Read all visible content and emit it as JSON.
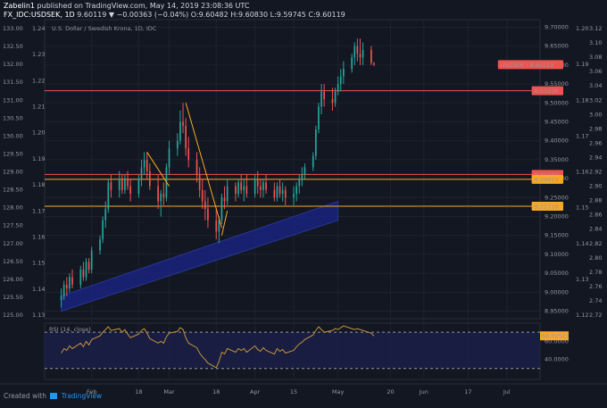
{
  "header": {
    "author": "Zabelin1",
    "published_text": "published on TradingView.com, May 14, 2019 23:08:36 UTC",
    "symbol": "FX_IDC:USDSEK, 1D",
    "ohlc": "9.60119 ▼ −0.00363 (−0.04%) O:9.60482 H:9.60830 L:9.59745 C:9.60119"
  },
  "footer": {
    "created_with": "Created with",
    "brand": "TradingView"
  },
  "chart_data": {
    "type": "candlestick",
    "title": "U.S. Dollar / Swedish Krona, 1D, IDC",
    "primary_axis": {
      "ticks": [
        "9.70000",
        "9.65000",
        "9.60000",
        "9.55000",
        "9.50000",
        "9.45000",
        "9.40000",
        "9.35000",
        "9.30000",
        "9.25000",
        "9.20000",
        "9.15000",
        "9.10000",
        "9.05000",
        "9.00000",
        "8.95000"
      ],
      "ylim": [
        8.93,
        9.72
      ]
    },
    "left_axis_1": {
      "ticks": [
        "133.00",
        "132.50",
        "132.00",
        "131.50",
        "131.00",
        "130.50",
        "130.00",
        "129.50",
        "129.00",
        "128.50",
        "128.00",
        "127.50",
        "127.00",
        "126.50",
        "126.00",
        "125.50",
        "125.00"
      ]
    },
    "left_axis_2": {
      "ticks": [
        "1.24",
        "1.23",
        "1.22",
        "1.21",
        "1.20",
        "1.19",
        "1.18",
        "1.17",
        "1.16",
        "1.15",
        "1.14",
        "1.13"
      ]
    },
    "right_axis_1": {
      "ticks": [
        "1.20",
        "1.19",
        "1.18",
        "1.17",
        "1.16",
        "1.15",
        "1.14",
        "1.13",
        "1.12"
      ]
    },
    "right_axis_2": {
      "ticks": [
        "3.12",
        "3.10",
        "3.08",
        "3.06",
        "3.04",
        "3.02",
        "3.00",
        "2.98",
        "2.96",
        "2.94",
        "2.92",
        "2.90",
        "2.88",
        "2.86",
        "2.84",
        "2.82",
        "2.80",
        "2.78",
        "2.76",
        "2.74",
        "2.72"
      ]
    },
    "x_ticks": [
      "Feb",
      "18",
      "Mar",
      "18",
      "Apr",
      "15",
      "May",
      "20",
      "Jun",
      "17",
      "Jul"
    ],
    "price_labels": [
      {
        "text": "USDSEK · 9.60119",
        "value": 9.60119,
        "color": "#ef5350"
      },
      {
        "text": "9.53236",
        "value": 9.53236,
        "color": "#ef5350"
      },
      {
        "text": "9.31102",
        "value": 9.31102,
        "color": "#ef5350"
      },
      {
        "text": "9.29810",
        "value": 9.2981,
        "color": "#f9a825"
      },
      {
        "text": "9.22718",
        "value": 9.22718,
        "color": "#f9a825"
      }
    ],
    "horizontal_lines": [
      {
        "value": 9.53236,
        "color": "#ef5350"
      },
      {
        "value": 9.31102,
        "color": "#ef5350"
      },
      {
        "value": 9.2981,
        "color": "#f9a825"
      },
      {
        "value": 9.22718,
        "color": "#f9a825"
      }
    ],
    "trend_lines": [
      {
        "from": [
          "Mar 7",
          9.5
        ],
        "to": [
          "Mar 20",
          9.17
        ],
        "color": "#f9a825"
      },
      {
        "from": [
          "Feb 21",
          9.37
        ],
        "to": [
          "Mar 1",
          9.28
        ],
        "color": "#f9a825"
      },
      {
        "from": [
          "Mar 20",
          9.15
        ],
        "to": [
          "Mar 22",
          9.215
        ],
        "color": "#f9a825"
      }
    ],
    "channel": {
      "lower": [
        [
          "Jan 21",
          8.95
        ],
        [
          "May 1",
          9.19
        ]
      ],
      "upper": [
        [
          "Jan 21",
          8.99
        ],
        [
          "May 1",
          9.24
        ]
      ],
      "color": "#1a237e"
    },
    "candles": [
      {
        "date": "Jan 21",
        "o": 8.98,
        "h": 9.01,
        "l": 8.96,
        "c": 8.99
      },
      {
        "date": "Jan 22",
        "o": 8.99,
        "h": 9.03,
        "l": 8.98,
        "c": 9.02
      },
      {
        "date": "Jan 23",
        "o": 9.02,
        "h": 9.04,
        "l": 8.99,
        "c": 9.01
      },
      {
        "date": "Jan 24",
        "o": 9.01,
        "h": 9.05,
        "l": 9.0,
        "c": 9.04
      },
      {
        "date": "Jan 25",
        "o": 9.04,
        "h": 9.06,
        "l": 9.01,
        "c": 9.02
      },
      {
        "date": "Jan 28",
        "o": 9.02,
        "h": 9.07,
        "l": 9.01,
        "c": 9.06
      },
      {
        "date": "Jan 29",
        "o": 9.06,
        "h": 9.08,
        "l": 9.03,
        "c": 9.04
      },
      {
        "date": "Jan 30",
        "o": 9.04,
        "h": 9.09,
        "l": 9.03,
        "c": 9.08
      },
      {
        "date": "Jan 31",
        "o": 9.08,
        "h": 9.09,
        "l": 9.05,
        "c": 9.06
      },
      {
        "date": "Feb 1",
        "o": 9.06,
        "h": 9.12,
        "l": 9.05,
        "c": 9.11
      },
      {
        "date": "Feb 4",
        "o": 9.11,
        "h": 9.15,
        "l": 9.1,
        "c": 9.14
      },
      {
        "date": "Feb 5",
        "o": 9.14,
        "h": 9.2,
        "l": 9.13,
        "c": 9.19
      },
      {
        "date": "Feb 6",
        "o": 9.19,
        "h": 9.24,
        "l": 9.17,
        "c": 9.22
      },
      {
        "date": "Feb 7",
        "o": 9.22,
        "h": 9.3,
        "l": 9.21,
        "c": 9.29
      },
      {
        "date": "Feb 8",
        "o": 9.29,
        "h": 9.31,
        "l": 9.25,
        "c": 9.27
      },
      {
        "date": "Feb 11",
        "o": 9.27,
        "h": 9.32,
        "l": 9.25,
        "c": 9.3
      },
      {
        "date": "Feb 12",
        "o": 9.3,
        "h": 9.31,
        "l": 9.26,
        "c": 9.27
      },
      {
        "date": "Feb 13",
        "o": 9.27,
        "h": 9.31,
        "l": 9.26,
        "c": 9.3
      },
      {
        "date": "Feb 14",
        "o": 9.3,
        "h": 9.32,
        "l": 9.27,
        "c": 9.28
      },
      {
        "date": "Feb 15",
        "o": 9.28,
        "h": 9.3,
        "l": 9.24,
        "c": 9.26
      },
      {
        "date": "Feb 18",
        "o": 9.26,
        "h": 9.31,
        "l": 9.25,
        "c": 9.3
      },
      {
        "date": "Feb 19",
        "o": 9.3,
        "h": 9.35,
        "l": 9.28,
        "c": 9.33
      },
      {
        "date": "Feb 20",
        "o": 9.33,
        "h": 9.37,
        "l": 9.31,
        "c": 9.35
      },
      {
        "date": "Feb 21",
        "o": 9.35,
        "h": 9.37,
        "l": 9.3,
        "c": 9.32
      },
      {
        "date": "Feb 22",
        "o": 9.32,
        "h": 9.34,
        "l": 9.27,
        "c": 9.28
      },
      {
        "date": "Feb 25",
        "o": 9.28,
        "h": 9.31,
        "l": 9.22,
        "c": 9.24
      },
      {
        "date": "Feb 26",
        "o": 9.24,
        "h": 9.27,
        "l": 9.2,
        "c": 9.26
      },
      {
        "date": "Feb 27",
        "o": 9.26,
        "h": 9.29,
        "l": 9.23,
        "c": 9.25
      },
      {
        "date": "Feb 28",
        "o": 9.25,
        "h": 9.34,
        "l": 9.24,
        "c": 9.33
      },
      {
        "date": "Mar 1",
        "o": 9.33,
        "h": 9.4,
        "l": 9.31,
        "c": 9.38
      },
      {
        "date": "Mar 4",
        "o": 9.38,
        "h": 9.42,
        "l": 9.36,
        "c": 9.4
      },
      {
        "date": "Mar 5",
        "o": 9.4,
        "h": 9.48,
        "l": 9.39,
        "c": 9.45
      },
      {
        "date": "Mar 6",
        "o": 9.45,
        "h": 9.5,
        "l": 9.42,
        "c": 9.44
      },
      {
        "date": "Mar 7",
        "o": 9.44,
        "h": 9.46,
        "l": 9.36,
        "c": 9.38
      },
      {
        "date": "Mar 8",
        "o": 9.38,
        "h": 9.41,
        "l": 9.33,
        "c": 9.35
      },
      {
        "date": "Mar 11",
        "o": 9.35,
        "h": 9.37,
        "l": 9.29,
        "c": 9.31
      },
      {
        "date": "Mar 12",
        "o": 9.31,
        "h": 9.33,
        "l": 9.25,
        "c": 9.27
      },
      {
        "date": "Mar 13",
        "o": 9.27,
        "h": 9.3,
        "l": 9.22,
        "c": 9.24
      },
      {
        "date": "Mar 14",
        "o": 9.24,
        "h": 9.27,
        "l": 9.19,
        "c": 9.22
      },
      {
        "date": "Mar 15",
        "o": 9.22,
        "h": 9.25,
        "l": 9.17,
        "c": 9.19
      },
      {
        "date": "Mar 18",
        "o": 9.19,
        "h": 9.22,
        "l": 9.14,
        "c": 9.16
      },
      {
        "date": "Mar 19",
        "o": 9.16,
        "h": 9.2,
        "l": 9.13,
        "c": 9.19
      },
      {
        "date": "Mar 20",
        "o": 9.19,
        "h": 9.26,
        "l": 9.18,
        "c": 9.25
      },
      {
        "date": "Mar 21",
        "o": 9.25,
        "h": 9.28,
        "l": 9.22,
        "c": 9.24
      },
      {
        "date": "Mar 22",
        "o": 9.24,
        "h": 9.3,
        "l": 9.23,
        "c": 9.28
      },
      {
        "date": "Mar 25",
        "o": 9.28,
        "h": 9.29,
        "l": 9.24,
        "c": 9.26
      },
      {
        "date": "Mar 26",
        "o": 9.26,
        "h": 9.3,
        "l": 9.25,
        "c": 9.29
      },
      {
        "date": "Mar 27",
        "o": 9.29,
        "h": 9.31,
        "l": 9.26,
        "c": 9.27
      },
      {
        "date": "Mar 28",
        "o": 9.27,
        "h": 9.3,
        "l": 9.24,
        "c": 9.28
      },
      {
        "date": "Mar 29",
        "o": 9.28,
        "h": 9.31,
        "l": 9.25,
        "c": 9.26
      },
      {
        "date": "Apr 1",
        "o": 9.26,
        "h": 9.31,
        "l": 9.25,
        "c": 9.3
      },
      {
        "date": "Apr 2",
        "o": 9.3,
        "h": 9.32,
        "l": 9.26,
        "c": 9.28
      },
      {
        "date": "Apr 3",
        "o": 9.28,
        "h": 9.3,
        "l": 9.25,
        "c": 9.27
      },
      {
        "date": "Apr 4",
        "o": 9.27,
        "h": 9.3,
        "l": 9.25,
        "c": 9.29
      },
      {
        "date": "Apr 5",
        "o": 9.29,
        "h": 9.31,
        "l": 9.26,
        "c": 9.27
      },
      {
        "date": "Apr 8",
        "o": 9.27,
        "h": 9.29,
        "l": 9.24,
        "c": 9.25
      },
      {
        "date": "Apr 9",
        "o": 9.25,
        "h": 9.29,
        "l": 9.24,
        "c": 9.28
      },
      {
        "date": "Apr 10",
        "o": 9.28,
        "h": 9.3,
        "l": 9.25,
        "c": 9.26
      },
      {
        "date": "Apr 11",
        "o": 9.26,
        "h": 9.29,
        "l": 9.24,
        "c": 9.27
      },
      {
        "date": "Apr 12",
        "o": 9.27,
        "h": 9.28,
        "l": 9.23,
        "c": 9.25
      },
      {
        "date": "Apr 15",
        "o": 9.25,
        "h": 9.28,
        "l": 9.23,
        "c": 9.26
      },
      {
        "date": "Apr 16",
        "o": 9.26,
        "h": 9.29,
        "l": 9.24,
        "c": 9.28
      },
      {
        "date": "Apr 17",
        "o": 9.28,
        "h": 9.31,
        "l": 9.26,
        "c": 9.3
      },
      {
        "date": "Apr 18",
        "o": 9.3,
        "h": 9.33,
        "l": 9.28,
        "c": 9.31
      },
      {
        "date": "Apr 19",
        "o": 9.31,
        "h": 9.34,
        "l": 9.3,
        "c": 9.33
      },
      {
        "date": "Apr 22",
        "o": 9.33,
        "h": 9.37,
        "l": 9.32,
        "c": 9.36
      },
      {
        "date": "Apr 23",
        "o": 9.36,
        "h": 9.44,
        "l": 9.35,
        "c": 9.43
      },
      {
        "date": "Apr 24",
        "o": 9.43,
        "h": 9.5,
        "l": 9.42,
        "c": 9.49
      },
      {
        "date": "Apr 25",
        "o": 9.49,
        "h": 9.55,
        "l": 9.47,
        "c": 9.53
      },
      {
        "date": "Apr 26",
        "o": 9.53,
        "h": 9.55,
        "l": 9.49,
        "c": 9.51
      },
      {
        "date": "Apr 29",
        "o": 9.51,
        "h": 9.54,
        "l": 9.48,
        "c": 9.5
      },
      {
        "date": "Apr 30",
        "o": 9.5,
        "h": 9.54,
        "l": 9.49,
        "c": 9.53
      },
      {
        "date": "May 1",
        "o": 9.53,
        "h": 9.57,
        "l": 9.52,
        "c": 9.55
      },
      {
        "date": "May 2",
        "o": 9.55,
        "h": 9.59,
        "l": 9.53,
        "c": 9.57
      },
      {
        "date": "May 3",
        "o": 9.57,
        "h": 9.61,
        "l": 9.55,
        "c": 9.59
      },
      {
        "date": "May 6",
        "o": 9.59,
        "h": 9.63,
        "l": 9.58,
        "c": 9.62
      },
      {
        "date": "May 7",
        "o": 9.62,
        "h": 9.66,
        "l": 9.6,
        "c": 9.65
      },
      {
        "date": "May 8",
        "o": 9.65,
        "h": 9.67,
        "l": 9.61,
        "c": 9.63
      },
      {
        "date": "May 9",
        "o": 9.63,
        "h": 9.67,
        "l": 9.6,
        "c": 9.62
      },
      {
        "date": "May 10",
        "o": 9.62,
        "h": 9.66,
        "l": 9.6,
        "c": 9.64
      },
      {
        "date": "May 13",
        "o": 9.64,
        "h": 9.65,
        "l": 9.6,
        "c": 9.605
      },
      {
        "date": "May 14",
        "o": 9.60482,
        "h": 9.6083,
        "l": 9.59745,
        "c": 9.60119
      }
    ],
    "rsi": {
      "label": "RSI (14, close)",
      "last_label": "66.02521",
      "ticks": [
        "60.0000",
        "40.0000"
      ],
      "ylim": [
        18,
        80
      ],
      "overbought": 70,
      "oversold": 30,
      "values": [
        47,
        52,
        50,
        55,
        52,
        58,
        54,
        60,
        56,
        62,
        66,
        70,
        73,
        76,
        72,
        74,
        70,
        73,
        68,
        64,
        68,
        72,
        74,
        69,
        63,
        58,
        60,
        58,
        65,
        69,
        71,
        75,
        73,
        64,
        58,
        53,
        47,
        43,
        40,
        36,
        31,
        38,
        48,
        46,
        52,
        48,
        52,
        50,
        52,
        48,
        55,
        51,
        49,
        53,
        50,
        46,
        52,
        49,
        51,
        47,
        50,
        54,
        57,
        59,
        62,
        67,
        72,
        76,
        73,
        70,
        72,
        74,
        73,
        75,
        77,
        74,
        73,
        74,
        73,
        72,
        69,
        66
      ]
    }
  }
}
